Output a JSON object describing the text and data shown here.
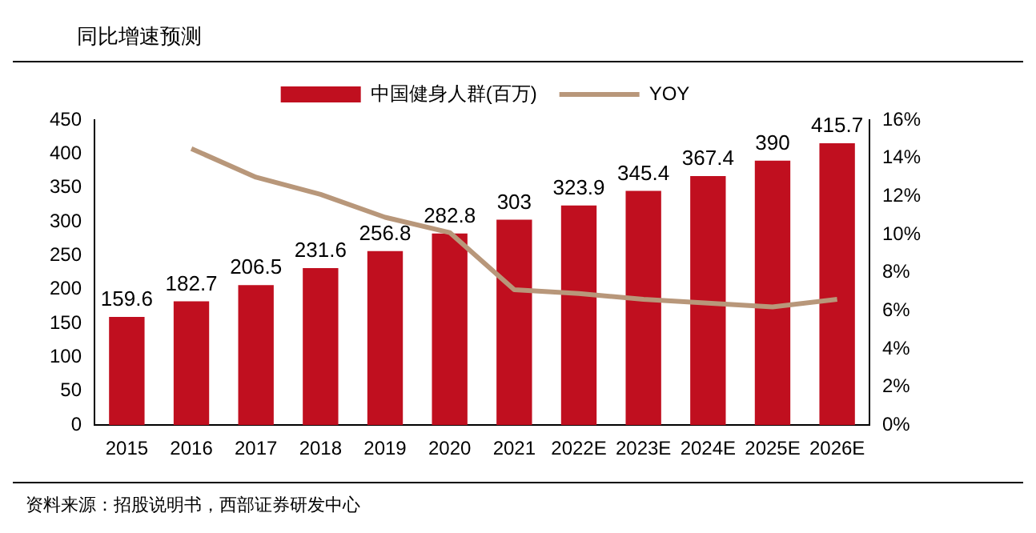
{
  "chart_data": {
    "type": "bar",
    "title": "同比增速预测",
    "annotations": [
      "资料来源：招股说明书，西部证券研发中心"
    ],
    "categories": [
      "2015",
      "2016",
      "2017",
      "2018",
      "2019",
      "2020",
      "2021",
      "2022E",
      "2023E",
      "2024E",
      "2025E",
      "2026E"
    ],
    "series": [
      {
        "name": "中国健身人群(百万)",
        "color": "#c00f1f",
        "values": [
          159.6,
          182.7,
          206.5,
          231.6,
          256.8,
          282.8,
          303,
          323.9,
          345.4,
          367.4,
          390,
          415.7
        ],
        "value_labels": [
          "159.6",
          "182.7",
          "206.5",
          "231.6",
          "256.8",
          "282.8",
          "303",
          "323.9",
          "345.4",
          "367.4",
          "390",
          "415.7"
        ]
      },
      {
        "name": "YOY",
        "type": "line",
        "axis": "y2",
        "color": "#b8977a",
        "marker": "none",
        "values": [
          null,
          14.5,
          13.0,
          12.1,
          10.9,
          10.1,
          7.1,
          6.9,
          6.6,
          6.4,
          6.2,
          6.6
        ]
      }
    ],
    "ylim": [
      0,
      450
    ],
    "yticks": [
      0,
      50,
      100,
      150,
      200,
      250,
      300,
      350,
      400,
      450
    ],
    "y2lim": [
      0,
      16
    ],
    "y2ticks": [
      {
        "value": 0,
        "label": "0%"
      },
      {
        "value": 2,
        "label": "2%"
      },
      {
        "value": 4,
        "label": "4%"
      },
      {
        "value": 6,
        "label": "6%"
      },
      {
        "value": 8,
        "label": "8%"
      },
      {
        "value": 10,
        "label": "10%"
      },
      {
        "value": 12,
        "label": "12%"
      },
      {
        "value": 14,
        "label": "14%"
      },
      {
        "value": 16,
        "label": "16%"
      }
    ],
    "legend": "top",
    "grid": false
  }
}
